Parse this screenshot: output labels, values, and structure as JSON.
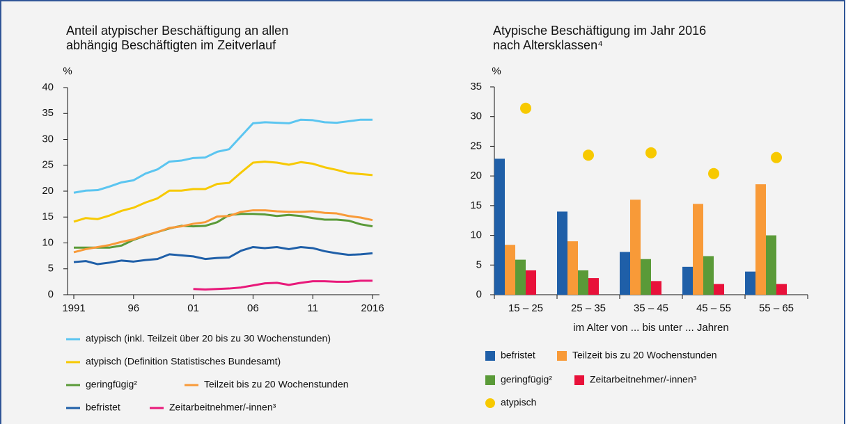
{
  "chart_data": [
    {
      "type": "line",
      "title": [
        "Anteil atypischer Beschäftigung an allen",
        "abhängig Beschäftigten im Zeitverlauf"
      ],
      "ylabel": "%",
      "x": [
        1991,
        1992,
        1993,
        1994,
        1995,
        1996,
        1997,
        1998,
        1999,
        2000,
        2001,
        2002,
        2003,
        2004,
        2005,
        2006,
        2007,
        2008,
        2009,
        2010,
        2011,
        2012,
        2013,
        2014,
        2015,
        2016
      ],
      "xlim": [
        1991,
        2016
      ],
      "xticks": [
        1991,
        {
          "value": 1996,
          "label": "96"
        },
        {
          "value": 2001,
          "label": "01"
        },
        {
          "value": 2006,
          "label": "06"
        },
        {
          "value": 2011,
          "label": "11"
        },
        2016
      ],
      "ylim": [
        0,
        40
      ],
      "yticks": [
        0,
        5,
        10,
        15,
        20,
        25,
        30,
        35,
        40
      ],
      "series": [
        {
          "name": "atypisch (inkl. Teilzeit über 20 bis zu 30 Wochenstunden)",
          "color": "#5bc5f0",
          "values": [
            19.7,
            20.1,
            20.2,
            20.9,
            21.7,
            22.1,
            23.4,
            24.2,
            25.7,
            25.9,
            26.4,
            26.5,
            27.6,
            28.1,
            30.6,
            33.1,
            33.3,
            33.2,
            33.1,
            33.8,
            33.7,
            33.3,
            33.2,
            33.5,
            33.8,
            33.8
          ]
        },
        {
          "name": "atypisch (Definition Statistisches Bundesamt)",
          "color": "#f7c900",
          "values": [
            14.1,
            14.8,
            14.6,
            15.3,
            16.2,
            16.8,
            17.8,
            18.6,
            20.1,
            20.1,
            20.4,
            20.4,
            21.4,
            21.6,
            23.6,
            25.5,
            25.7,
            25.5,
            25.1,
            25.6,
            25.3,
            24.6,
            24.1,
            23.5,
            23.3,
            23.1
          ]
        },
        {
          "name": "geringfügig²",
          "color": "#5a9a38",
          "values": [
            9.1,
            9.1,
            9.1,
            9.1,
            9.5,
            10.6,
            11.4,
            12.1,
            12.8,
            13.3,
            13.2,
            13.3,
            14.0,
            15.4,
            15.6,
            15.6,
            15.5,
            15.2,
            15.4,
            15.2,
            14.8,
            14.5,
            14.5,
            14.3,
            13.6,
            13.2
          ]
        },
        {
          "name": "Teilzeit bis zu 20 Wochenstunden",
          "color": "#f89a38",
          "values": [
            8.2,
            8.8,
            9.2,
            9.6,
            10.2,
            10.7,
            11.5,
            12.1,
            12.9,
            13.2,
            13.7,
            14.0,
            15.1,
            15.2,
            16.0,
            16.3,
            16.3,
            16.1,
            16.0,
            16.0,
            16.1,
            15.8,
            15.7,
            15.2,
            14.9,
            14.4
          ]
        },
        {
          "name": "befristet",
          "color": "#1f5fa8",
          "values": [
            6.3,
            6.5,
            5.9,
            6.2,
            6.6,
            6.4,
            6.7,
            6.9,
            7.8,
            7.6,
            7.4,
            6.9,
            7.1,
            7.2,
            8.5,
            9.2,
            9.0,
            9.2,
            8.8,
            9.2,
            9.0,
            8.4,
            8.0,
            7.7,
            7.8,
            8.0
          ]
        },
        {
          "name": "Zeitarbeitnehmer/-innen³",
          "color": "#e8197a",
          "values": [
            null,
            null,
            null,
            null,
            null,
            null,
            null,
            null,
            null,
            null,
            1.1,
            1.0,
            1.1,
            1.2,
            1.4,
            1.8,
            2.2,
            2.3,
            1.9,
            2.3,
            2.6,
            2.6,
            2.5,
            2.5,
            2.7,
            2.7
          ]
        }
      ]
    },
    {
      "type": "bar",
      "title": [
        "Atypische Beschäftigung im Jahr 2016",
        "nach Altersklassen⁴"
      ],
      "ylabel": "%",
      "xlabel": "im Alter von ... bis unter ... Jahren",
      "categories": [
        "15 – 25",
        "25 – 35",
        "35 – 45",
        "45 – 55",
        "55 – 65"
      ],
      "ylim": [
        0,
        35
      ],
      "yticks": [
        0,
        5,
        10,
        15,
        20,
        25,
        30,
        35
      ],
      "series": [
        {
          "name": "befristet",
          "color": "#1f5fa8",
          "values": [
            22.9,
            14.0,
            7.2,
            4.7,
            3.9
          ]
        },
        {
          "name": "Teilzeit bis zu 20 Wochenstunden",
          "color": "#f89a38",
          "values": [
            8.4,
            9.0,
            16.0,
            15.3,
            18.6
          ]
        },
        {
          "name": "geringfügig²",
          "color": "#5a9a38",
          "values": [
            5.9,
            4.1,
            6.0,
            6.5,
            10.0
          ]
        },
        {
          "name": "Zeitarbeitnehmer/-innen³",
          "color": "#e8113a",
          "values": [
            4.1,
            2.8,
            2.3,
            1.8,
            1.8
          ]
        },
        {
          "name": "atypisch",
          "color": "#f7c900",
          "marker": "dot",
          "values": [
            31.4,
            23.5,
            23.9,
            20.4,
            23.1
          ]
        }
      ]
    }
  ]
}
